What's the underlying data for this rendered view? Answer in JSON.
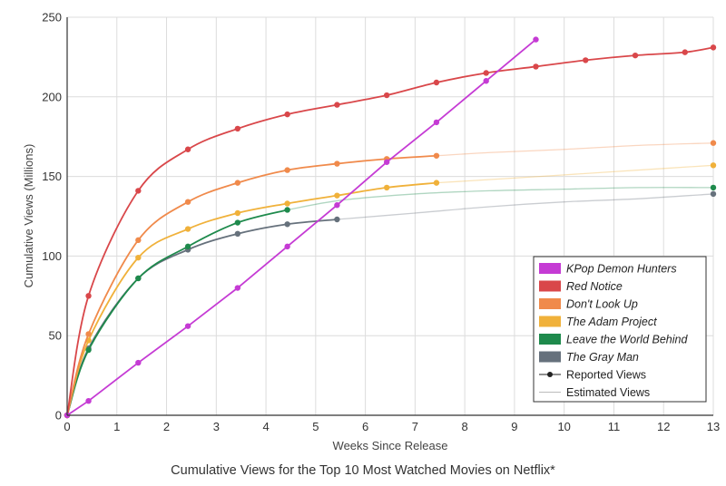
{
  "chart_data": {
    "type": "line",
    "title": "Cumulative Views for the Top 10 Most Watched Movies on Netflix*",
    "xlabel": "Weeks Since Release",
    "ylabel": "Cumulative Views (Millions)",
    "xlim": [
      0,
      13
    ],
    "ylim": [
      0,
      250
    ],
    "xticks": [
      0,
      1,
      2,
      3,
      4,
      5,
      6,
      7,
      8,
      9,
      10,
      11,
      12,
      13
    ],
    "yticks": [
      0,
      50,
      100,
      150,
      200,
      250
    ],
    "grid": true,
    "legend_position": "bottom-right",
    "series": [
      {
        "name": "KPop Demon Hunters",
        "color": "#c53bd4",
        "reported": [
          [
            0,
            0
          ],
          [
            0.43,
            9
          ],
          [
            1.43,
            33
          ],
          [
            2.43,
            56
          ],
          [
            3.43,
            80
          ],
          [
            4.43,
            106
          ],
          [
            5.43,
            132
          ],
          [
            6.43,
            159
          ],
          [
            7.43,
            184
          ],
          [
            8.43,
            210
          ],
          [
            9.43,
            236
          ]
        ]
      },
      {
        "name": "Red Notice",
        "color": "#d9474a",
        "reported": [
          [
            0,
            0
          ],
          [
            0.43,
            75
          ],
          [
            1.43,
            141
          ],
          [
            2.43,
            167
          ],
          [
            3.43,
            180
          ],
          [
            4.43,
            189
          ],
          [
            5.43,
            195
          ],
          [
            6.43,
            201
          ],
          [
            7.43,
            209
          ],
          [
            8.43,
            215
          ],
          [
            9.43,
            219
          ],
          [
            10.43,
            223
          ],
          [
            11.43,
            226
          ],
          [
            12.43,
            228
          ],
          [
            13,
            231
          ]
        ]
      },
      {
        "name": "Don't Look Up",
        "color": "#f08a4b",
        "reported": [
          [
            0,
            0
          ],
          [
            0.43,
            51
          ],
          [
            1.43,
            110
          ],
          [
            2.43,
            134
          ],
          [
            3.43,
            146
          ],
          [
            4.43,
            154
          ],
          [
            5.43,
            158
          ],
          [
            6.43,
            161
          ],
          [
            7.43,
            163
          ]
        ],
        "estimated": [
          [
            7.43,
            163
          ],
          [
            8.5,
            165
          ],
          [
            10,
            167
          ],
          [
            11.5,
            169.5
          ],
          [
            13,
            171
          ]
        ]
      },
      {
        "name": "The Adam Project",
        "color": "#f0b13a",
        "reported": [
          [
            0,
            0
          ],
          [
            0.43,
            47
          ],
          [
            1.43,
            99
          ],
          [
            2.43,
            117
          ],
          [
            3.43,
            127
          ],
          [
            4.43,
            133
          ],
          [
            5.43,
            138
          ],
          [
            6.43,
            143
          ],
          [
            7.43,
            146
          ]
        ],
        "estimated": [
          [
            7.43,
            146
          ],
          [
            9,
            149
          ],
          [
            10.5,
            152
          ],
          [
            12,
            155
          ],
          [
            13,
            157
          ]
        ]
      },
      {
        "name": "Leave the World Behind",
        "color": "#1e8a4c",
        "reported": [
          [
            0,
            0
          ],
          [
            0.43,
            41
          ],
          [
            1.43,
            86
          ],
          [
            2.43,
            106
          ],
          [
            3.43,
            121
          ],
          [
            4.43,
            129
          ]
        ],
        "estimated": [
          [
            4.43,
            129
          ],
          [
            5.5,
            135
          ],
          [
            7,
            139
          ],
          [
            8.5,
            141
          ],
          [
            10,
            142
          ],
          [
            11.5,
            143
          ],
          [
            13,
            143
          ]
        ]
      },
      {
        "name": "The Gray Man",
        "color": "#66717c",
        "reported": [
          [
            0,
            0
          ],
          [
            0.43,
            42
          ],
          [
            1.43,
            86
          ],
          [
            2.43,
            104
          ],
          [
            3.43,
            114
          ],
          [
            4.43,
            120
          ],
          [
            5.43,
            123
          ]
        ],
        "estimated": [
          [
            5.43,
            123
          ],
          [
            7,
            127
          ],
          [
            8.5,
            131
          ],
          [
            10,
            134
          ],
          [
            11.5,
            136
          ],
          [
            13,
            139
          ]
        ]
      }
    ],
    "legend_markers": {
      "reported": "Reported Views",
      "estimated": "Estimated Views"
    }
  }
}
